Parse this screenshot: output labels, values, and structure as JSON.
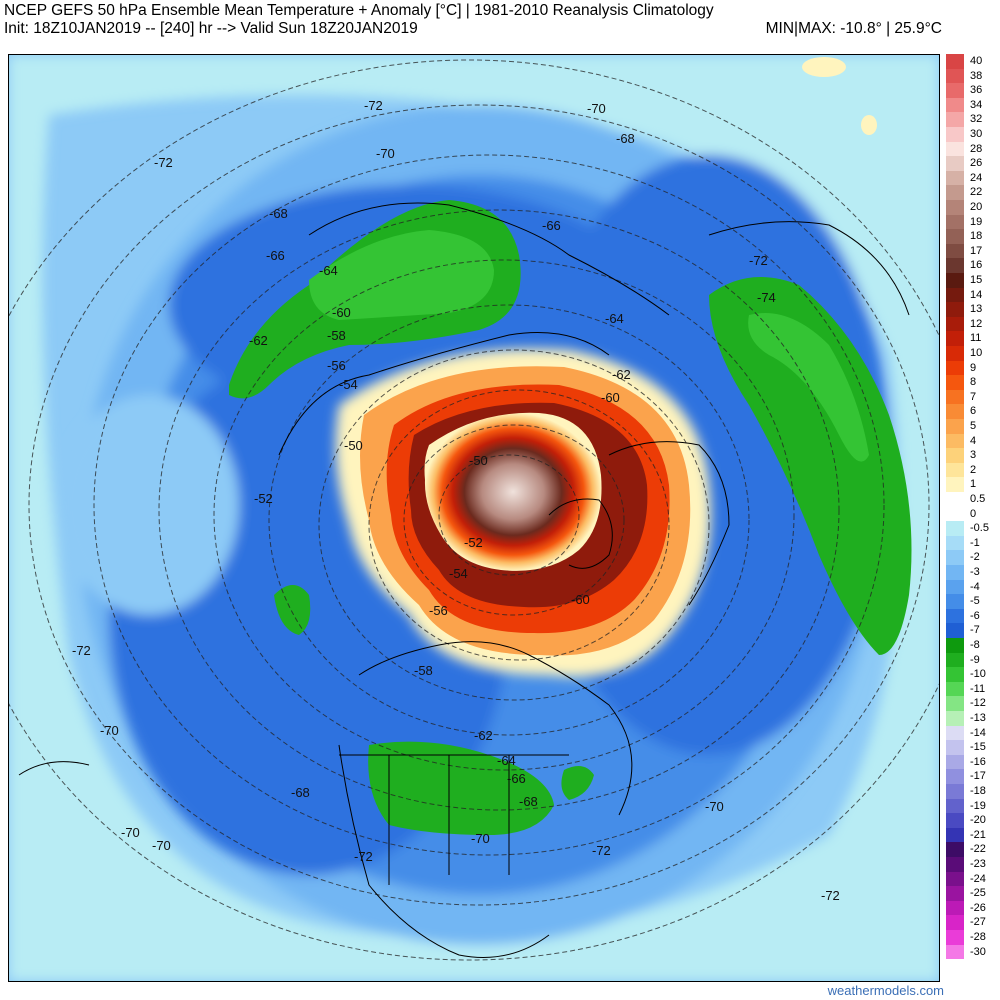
{
  "header": {
    "title": "NCEP GEFS 50 hPa Ensemble Mean Temperature + Anomaly [°C] | 1981-2010 Reanalysis Climatology",
    "subtitle": "Init: 18Z10JAN2019 -- [240] hr --> Valid Sun 18Z20JAN2019",
    "minmax": "MIN|MAX: -10.8° | 25.9°C"
  },
  "credit": "weathermodels.com",
  "legend": [
    {
      "label": "40",
      "color": "#d94545"
    },
    {
      "label": "38",
      "color": "#e05555"
    },
    {
      "label": "36",
      "color": "#e86a6a"
    },
    {
      "label": "34",
      "color": "#f08a8a"
    },
    {
      "label": "32",
      "color": "#f4a7a7"
    },
    {
      "label": "30",
      "color": "#f8c8c8"
    },
    {
      "label": "28",
      "color": "#fae3df"
    },
    {
      "label": "26",
      "color": "#e8cbc4"
    },
    {
      "label": "24",
      "color": "#d6b1a6"
    },
    {
      "label": "22",
      "color": "#c49a8e"
    },
    {
      "label": "20",
      "color": "#b48478"
    },
    {
      "label": "19",
      "color": "#a37166"
    },
    {
      "label": "18",
      "color": "#936156"
    },
    {
      "label": "17",
      "color": "#7f4c42"
    },
    {
      "label": "16",
      "color": "#6b372f"
    },
    {
      "label": "15",
      "color": "#5a1a10"
    },
    {
      "label": "14",
      "color": "#751a0e"
    },
    {
      "label": "13",
      "color": "#8f1b0c"
    },
    {
      "label": "12",
      "color": "#a81c0a"
    },
    {
      "label": "11",
      "color": "#c21f08"
    },
    {
      "label": "10",
      "color": "#d82a06"
    },
    {
      "label": "9",
      "color": "#ec3c06"
    },
    {
      "label": "8",
      "color": "#f5570e"
    },
    {
      "label": "7",
      "color": "#f77221"
    },
    {
      "label": "6",
      "color": "#f98b35"
    },
    {
      "label": "5",
      "color": "#fba34c"
    },
    {
      "label": "4",
      "color": "#fcbb63"
    },
    {
      "label": "3",
      "color": "#fdd27a"
    },
    {
      "label": "2",
      "color": "#fee59a"
    },
    {
      "label": "1",
      "color": "#fff4be"
    },
    {
      "label": "0.5",
      "color": "#ffffff"
    },
    {
      "label": "0",
      "color": "#ffffff"
    },
    {
      "label": "-0.5",
      "color": "#b8ecf4"
    },
    {
      "label": "-1",
      "color": "#a6dcf7"
    },
    {
      "label": "-2",
      "color": "#8dcaf6"
    },
    {
      "label": "-3",
      "color": "#72b6f3"
    },
    {
      "label": "-4",
      "color": "#5aa2ee"
    },
    {
      "label": "-5",
      "color": "#448de8"
    },
    {
      "label": "-6",
      "color": "#2d72df"
    },
    {
      "label": "-7",
      "color": "#1f5fd4"
    },
    {
      "label": "-8",
      "color": "#0e9a0e"
    },
    {
      "label": "-9",
      "color": "#1fae1f"
    },
    {
      "label": "-10",
      "color": "#34c434"
    },
    {
      "label": "-11",
      "color": "#55d655"
    },
    {
      "label": "-12",
      "color": "#84e584"
    },
    {
      "label": "-13",
      "color": "#b6f0b6"
    },
    {
      "label": "-14",
      "color": "#dcdcf4"
    },
    {
      "label": "-15",
      "color": "#c3c3ee"
    },
    {
      "label": "-16",
      "color": "#a9a9e6"
    },
    {
      "label": "-17",
      "color": "#9090df"
    },
    {
      "label": "-18",
      "color": "#7a7ad6"
    },
    {
      "label": "-19",
      "color": "#6262cc"
    },
    {
      "label": "-20",
      "color": "#4a4ac2"
    },
    {
      "label": "-21",
      "color": "#3434b4"
    },
    {
      "label": "-22",
      "color": "#3d0c66"
    },
    {
      "label": "-23",
      "color": "#5a0c78"
    },
    {
      "label": "-24",
      "color": "#7a108c"
    },
    {
      "label": "-25",
      "color": "#9a14a0"
    },
    {
      "label": "-26",
      "color": "#bc1ab6"
    },
    {
      "label": "-27",
      "color": "#d824c8"
    },
    {
      "label": "-28",
      "color": "#ea3cd8"
    },
    {
      "label": "-30",
      "color": "#f478e6"
    }
  ],
  "contour_labels": [
    {
      "id": "c1",
      "text": "-72"
    },
    {
      "id": "c2",
      "text": "-70"
    },
    {
      "id": "c3",
      "text": "-70"
    },
    {
      "id": "c4",
      "text": "-68"
    },
    {
      "id": "c5",
      "text": "-72"
    },
    {
      "id": "c6",
      "text": "-68"
    },
    {
      "id": "c7",
      "text": "-66"
    },
    {
      "id": "c8",
      "text": "-64"
    },
    {
      "id": "c9",
      "text": "-66"
    },
    {
      "id": "c10",
      "text": "-64"
    },
    {
      "id": "c11",
      "text": "-62"
    },
    {
      "id": "c12",
      "text": "-60"
    },
    {
      "id": "c13",
      "text": "-58"
    },
    {
      "id": "c14",
      "text": "-56"
    },
    {
      "id": "c15",
      "text": "-54"
    },
    {
      "id": "c16",
      "text": "-62"
    },
    {
      "id": "c17",
      "text": "-50"
    },
    {
      "id": "c18",
      "text": "-50"
    },
    {
      "id": "c19",
      "text": "-60"
    },
    {
      "id": "c20",
      "text": "-52"
    },
    {
      "id": "c21",
      "text": "-52"
    },
    {
      "id": "c22",
      "text": "-54"
    },
    {
      "id": "c23",
      "text": "-56"
    },
    {
      "id": "c24",
      "text": "-60"
    },
    {
      "id": "c25",
      "text": "-58"
    },
    {
      "id": "c26",
      "text": "-72"
    },
    {
      "id": "c27",
      "text": "-74"
    },
    {
      "id": "c28",
      "text": "-72"
    },
    {
      "id": "c29",
      "text": "-70"
    },
    {
      "id": "c30",
      "text": "-62"
    },
    {
      "id": "c31",
      "text": "-64"
    },
    {
      "id": "c32",
      "text": "-66"
    },
    {
      "id": "c33",
      "text": "-68"
    },
    {
      "id": "c34",
      "text": "-68"
    },
    {
      "id": "c35",
      "text": "-70"
    },
    {
      "id": "c36",
      "text": "-70"
    },
    {
      "id": "c37",
      "text": "-70"
    },
    {
      "id": "c38",
      "text": "-72"
    },
    {
      "id": "c39",
      "text": "-72"
    },
    {
      "id": "c40",
      "text": "-70"
    },
    {
      "id": "c41",
      "text": "-72"
    }
  ]
}
